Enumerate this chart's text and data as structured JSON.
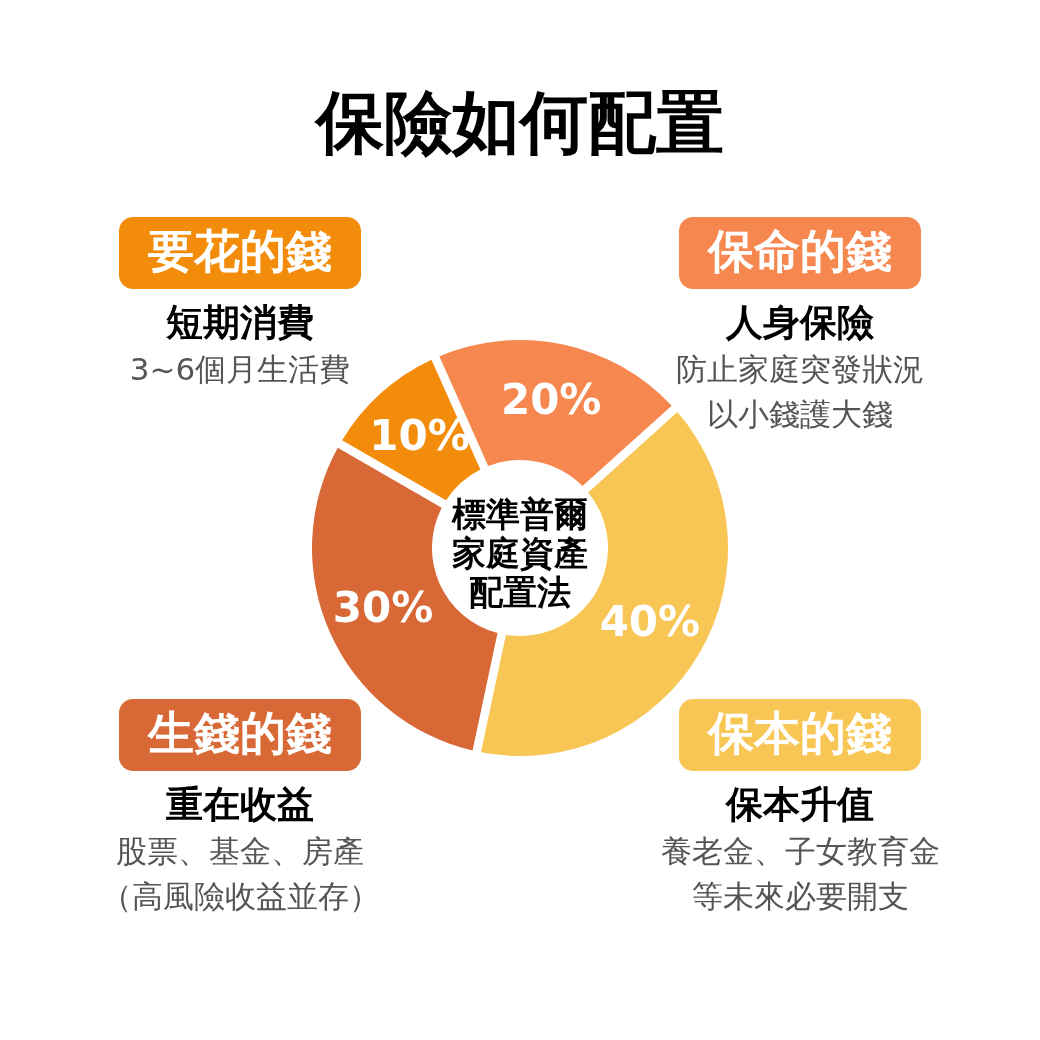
{
  "chart_data": {
    "type": "donut",
    "title": "保險如何配置",
    "categories": [
      "要花的錢",
      "保命的錢",
      "保本的錢",
      "生錢的錢"
    ],
    "values": [
      10,
      20,
      40,
      30
    ],
    "value_labels": [
      "10%",
      "20%",
      "40%",
      "30%"
    ],
    "colors": [
      "#f28c0a",
      "#f6874e",
      "#f7c654",
      "#d96837"
    ],
    "annotations": [
      "標準普爾家庭資產配置法",
      {
        "text": "短期消費",
        "x": "要花的錢"
      },
      {
        "text": "3~6個月生活費",
        "x": "要花的錢"
      },
      {
        "text": "人身保險",
        "x": "保命的錢"
      },
      {
        "text": "防止家庭突發狀況",
        "x": "保命的錢"
      },
      {
        "text": "以小錢護大錢",
        "x": "保命的錢"
      },
      {
        "text": "保本升值",
        "x": "保本的錢"
      },
      {
        "text": "養老金、子女教育金",
        "x": "保本的錢"
      },
      {
        "text": "等未來必要開支",
        "x": "保本的錢"
      },
      {
        "text": "重在收益",
        "x": "生錢的錢"
      },
      {
        "text": "股票、基金、房產",
        "x": "生錢的錢"
      },
      {
        "text": "（高風險收益並存）",
        "x": "生錢的錢"
      }
    ]
  }
}
